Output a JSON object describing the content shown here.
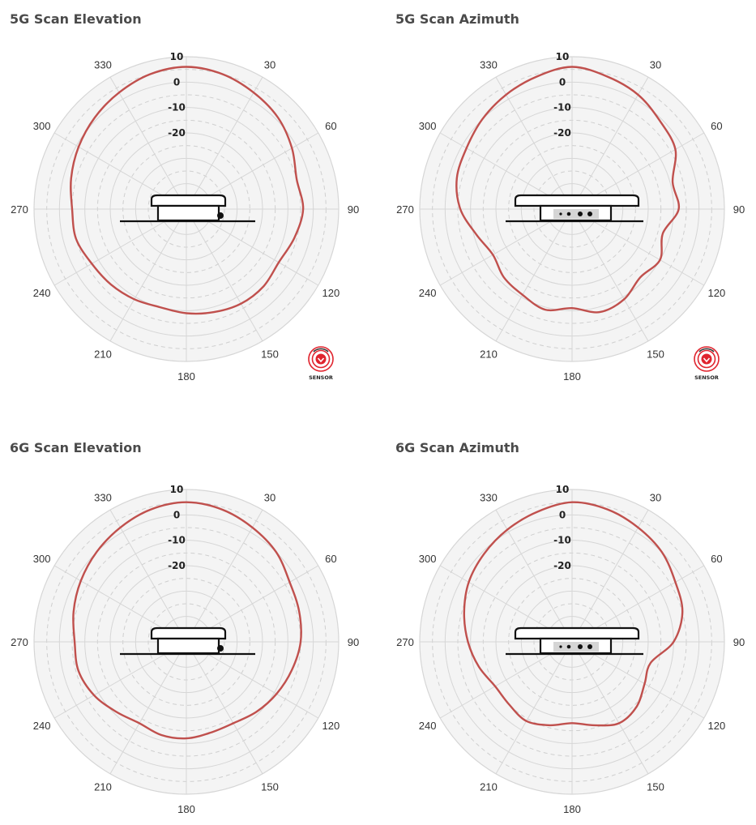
{
  "colors": {
    "pattern": "#c0504d",
    "plot_bg": "#f4f4f4",
    "grid": "#d6d6d6",
    "grid_dashed": "#cfcfcf",
    "text": "#333333",
    "device": "#111111",
    "sensor_red": "#e0242e"
  },
  "sensor_badge": {
    "label": "SENSOR",
    "icon": "sensor-icon"
  },
  "chart_data": [
    {
      "type": "polar",
      "title": "5G Scan Elevation",
      "device_view": "side",
      "sensor_badge": true,
      "angle_labels": [
        "0",
        "30",
        "60",
        "90",
        "120",
        "150",
        "180",
        "210",
        "240",
        "270",
        "300",
        "330"
      ],
      "ring_labels": [
        "10",
        "0",
        "-10",
        "-20"
      ],
      "r_range": [
        -50,
        10
      ],
      "theta_deg": [
        0,
        15,
        30,
        45,
        60,
        75,
        90,
        105,
        120,
        135,
        150,
        165,
        180,
        195,
        210,
        225,
        240,
        255,
        270,
        285,
        300,
        315,
        330,
        345
      ],
      "gain_db": [
        6,
        5,
        3,
        1,
        -2,
        -5,
        -4,
        -6,
        -8,
        -7,
        -7,
        -8,
        -9,
        -10,
        -9,
        -8,
        -7,
        -5,
        -5,
        -3,
        -1,
        1,
        3,
        5
      ]
    },
    {
      "type": "polar",
      "title": "5G Scan Azimuth",
      "device_view": "front",
      "sensor_badge": true,
      "angle_labels": [
        "0",
        "30",
        "60",
        "90",
        "120",
        "150",
        "180",
        "210",
        "240",
        "270",
        "300",
        "330"
      ],
      "ring_labels": [
        "10",
        "0",
        "-10",
        "-20"
      ],
      "r_range": [
        -50,
        10
      ],
      "theta_deg": [
        0,
        15,
        30,
        45,
        60,
        75,
        90,
        105,
        120,
        135,
        150,
        165,
        180,
        195,
        210,
        225,
        240,
        255,
        270,
        285,
        300,
        315,
        330,
        345
      ],
      "gain_db": [
        6,
        4,
        2,
        -1,
        -3,
        -9,
        -8,
        -13,
        -10,
        -12,
        -9,
        -8,
        -11,
        -9,
        -11,
        -12,
        -14,
        -11,
        -6,
        -3,
        -2,
        0,
        2,
        4
      ]
    },
    {
      "type": "polar",
      "title": "6G Scan Elevation",
      "device_view": "side",
      "sensor_badge": false,
      "angle_labels": [
        "0",
        "30",
        "60",
        "90",
        "120",
        "150",
        "180",
        "210",
        "240",
        "270",
        "300",
        "330"
      ],
      "ring_labels": [
        "10",
        "0",
        "-10",
        "-20"
      ],
      "r_range": [
        -50,
        10
      ],
      "theta_deg": [
        0,
        15,
        30,
        45,
        60,
        75,
        90,
        105,
        120,
        135,
        150,
        165,
        180,
        195,
        210,
        225,
        240,
        255,
        270,
        285,
        300,
        315,
        330,
        345
      ],
      "gain_db": [
        5,
        4,
        2,
        0,
        -3,
        -4,
        -5,
        -7,
        -9,
        -11,
        -13,
        -13,
        -12,
        -12,
        -13,
        -11,
        -8,
        -6,
        -6,
        -4,
        -2,
        0,
        2,
        4
      ]
    },
    {
      "type": "polar",
      "title": "6G Scan Azimuth",
      "device_view": "front",
      "sensor_badge": false,
      "angle_labels": [
        "0",
        "30",
        "60",
        "90",
        "120",
        "150",
        "180",
        "210",
        "240",
        "270",
        "300",
        "330"
      ],
      "ring_labels": [
        "10",
        "0",
        "-10",
        "-20"
      ],
      "r_range": [
        -50,
        10
      ],
      "theta_deg": [
        0,
        15,
        30,
        45,
        60,
        75,
        90,
        105,
        120,
        135,
        150,
        165,
        180,
        195,
        210,
        225,
        240,
        255,
        270,
        285,
        300,
        315,
        330,
        345
      ],
      "gain_db": [
        5,
        4,
        2,
        0,
        -3,
        -5,
        -10,
        -18,
        -17,
        -14,
        -13,
        -16,
        -18,
        -16,
        -14,
        -15,
        -15,
        -12,
        -9,
        -6,
        -3,
        -1,
        1,
        3
      ]
    }
  ]
}
